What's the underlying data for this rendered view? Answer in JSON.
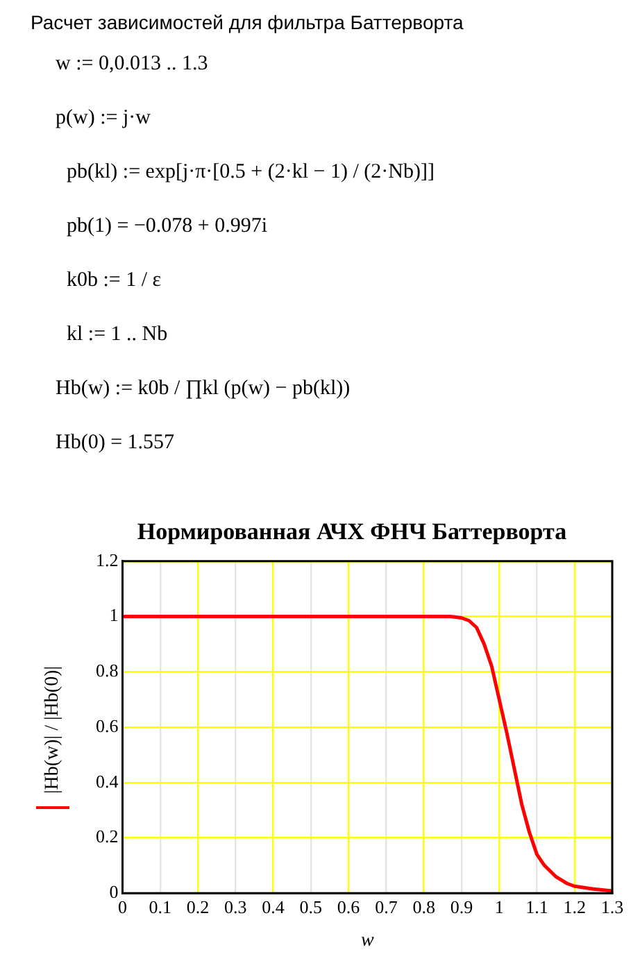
{
  "chart_data": {
    "type": "line",
    "title": "Нормированная АЧХ ФНЧ Баттерворта",
    "xlabel": "w",
    "ylabel": "|Hb(w)| / |Hb(0)|",
    "annotations": [
      "Расчет зависимостей для фильтра Баттерворта",
      "w := 0,0.013 .. 1.3",
      "p(w) := j·w",
      "pb(kl) := exp[j·π·[0.5 + (2·kl − 1) / (2·Nb)]]",
      "pb(1) = −0.078 + 0.997i",
      "k0b := 1 / ε",
      "kl := 1 .. Nb",
      "Hb(w) := k0b / ∏kl (p(w) − pb(kl))",
      "Hb(0) = 1.557"
    ],
    "series": [
      {
        "color": "#ff0000",
        "x": [
          0,
          0.2,
          0.4,
          0.6,
          0.8,
          0.87,
          0.9,
          0.92,
          0.94,
          0.96,
          0.98,
          1.0,
          1.02,
          1.04,
          1.06,
          1.08,
          1.1,
          1.12,
          1.15,
          1.18,
          1.2,
          1.25,
          1.3
        ],
        "values": [
          1,
          1,
          1,
          1,
          1,
          1,
          0.995,
          0.985,
          0.96,
          0.9,
          0.82,
          0.7,
          0.58,
          0.45,
          0.32,
          0.22,
          0.14,
          0.1,
          0.06,
          0.035,
          0.025,
          0.015,
          0.008
        ]
      }
    ],
    "xlim": [
      0,
      1.3
    ],
    "xticks": [
      0,
      0.1,
      0.2,
      0.3,
      0.4,
      0.5,
      0.6,
      0.7,
      0.8,
      0.9,
      1,
      1.1,
      1.2,
      1.3
    ],
    "ylim": [
      0,
      1.2
    ],
    "yticks": [
      0,
      0.2,
      0.4,
      0.6,
      0.8,
      1,
      1.2
    ],
    "grid": true,
    "legend": false,
    "marker": "none",
    "line_style": "solid"
  }
}
